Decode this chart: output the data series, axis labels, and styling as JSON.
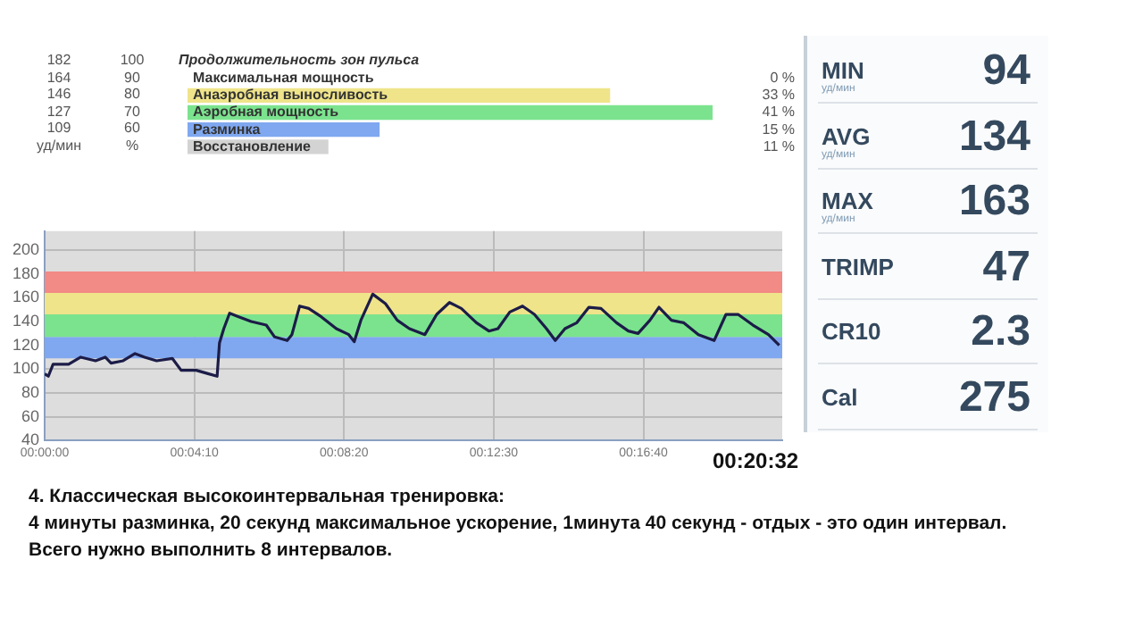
{
  "chart_data": [
    {
      "type": "bar",
      "orientation": "horizontal",
      "title": "Продолжительность зон пульса",
      "categories": [
        "Максимальная мощность",
        "Анаэробная выносливость",
        "Аэробная мощность",
        "Разминка",
        "Восстановление"
      ],
      "values": [
        0,
        33,
        41,
        15,
        11
      ],
      "colors": [
        "#f08080",
        "#efe48a",
        "#7be38e",
        "#80a8f0",
        "#d3d3d3"
      ],
      "value_labels": [
        "0 %",
        "33 %",
        "41 %",
        "15 %",
        "11 %"
      ],
      "tick_labels": "y",
      "annotations": [
        "182",
        "100",
        "164",
        "90",
        "146",
        "80",
        "127",
        "70",
        "109",
        "60",
        "уд/мин",
        "%"
      ]
    },
    {
      "type": "line",
      "x": [
        0,
        0.0017,
        0.0039,
        0.0111,
        0.0167,
        0.0236,
        0.0281,
        0.0308,
        0.0364,
        0.0419,
        0.0464,
        0.0519,
        0.0592,
        0.0633,
        0.0703,
        0.0761,
        0.08,
        0.0811,
        0.0831,
        0.0858,
        0.09,
        0.0958,
        0.1028,
        0.1067,
        0.1125,
        0.1147,
        0.1183,
        0.1225,
        0.1283,
        0.1353,
        0.1411,
        0.1436,
        0.1467,
        0.1522,
        0.1581,
        0.1636,
        0.1692,
        0.1764,
        0.1819,
        0.1878,
        0.1933,
        0.2003,
        0.2061,
        0.2103,
        0.2158,
        0.2217,
        0.2272,
        0.2328,
        0.2369,
        0.2414,
        0.2469,
        0.2525,
        0.2581,
        0.2653,
        0.2708,
        0.2753,
        0.2808,
        0.285,
        0.2908,
        0.2964,
        0.3033,
        0.3106,
        0.3161,
        0.3217,
        0.3286,
        0.3358,
        0.3408
      ],
      "series": [
        {
          "color": "#1c1c48",
          "values": [
            96,
            94,
            104,
            104,
            110,
            107,
            110,
            105,
            107,
            113,
            110,
            107,
            109,
            99,
            99,
            96,
            94,
            122,
            134,
            147,
            144,
            140,
            137,
            127,
            124,
            129,
            153,
            151,
            144,
            134,
            129,
            123,
            141,
            163,
            155,
            141,
            134,
            129,
            146,
            156,
            151,
            139,
            132,
            134,
            148,
            153,
            146,
            134,
            124,
            134,
            139,
            152,
            151,
            139,
            132,
            130,
            141,
            152,
            141,
            139,
            129,
            124,
            146,
            146,
            137,
            129,
            120
          ]
        }
      ],
      "xlim": [
        0,
        0.3422
      ],
      "xticks": [
        {
          "value": 0,
          "label": "00:00:00"
        },
        {
          "value": 0.069444,
          "label": "00:04:10"
        },
        {
          "value": 0.138889,
          "label": "00:08:20"
        },
        {
          "value": 0.208333,
          "label": "00:12:30"
        },
        {
          "value": 0.277778,
          "label": "00:16:40"
        }
      ],
      "ylim": [
        40,
        216
      ],
      "yticks": [
        40,
        60,
        80,
        100,
        120,
        140,
        160,
        180,
        200
      ],
      "grid": true,
      "marker": "none",
      "bands": [
        {
          "axis": "y",
          "from": 109,
          "to": 127,
          "color": "#80a8f0"
        },
        {
          "axis": "y",
          "from": 127,
          "to": 146,
          "color": "#7be38e"
        },
        {
          "axis": "y",
          "from": 146,
          "to": 164,
          "color": "#efe48a"
        },
        {
          "axis": "y",
          "from": 164,
          "to": 182,
          "color": "#f28a86"
        }
      ],
      "annotations": [
        "00:20:32",
        "4. Классическая высокоинтервальная тренировка:",
        "4 минуты разминка, 20 секунд максимальное ускорение, 1минута 40 секунд - отдых - это один интервал.",
        "Всего нужно выполнить 8 интервалов."
      ]
    },
    {
      "type": "other",
      "categories": [
        "MIN",
        "AVG",
        "MAX",
        "TRIMP",
        "CR10",
        "Cal"
      ],
      "values": [
        94,
        134,
        163,
        47,
        2.3,
        275
      ],
      "data_labels": true,
      "annotations": [
        "уд/мин",
        "уд/мин",
        "уд/мин"
      ]
    }
  ]
}
